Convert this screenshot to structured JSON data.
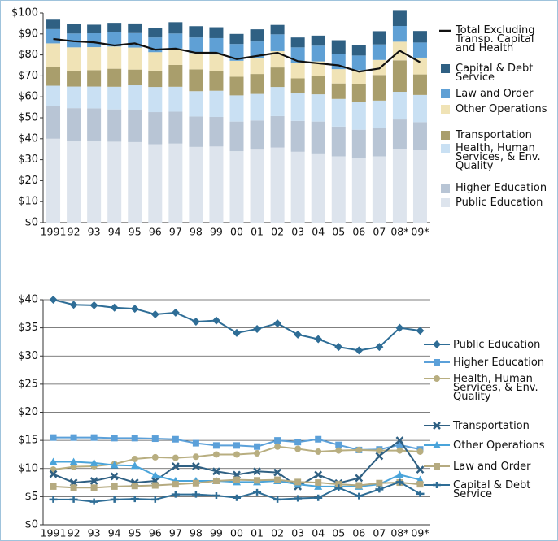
{
  "chart_data": [
    {
      "type": "bar",
      "stacked": true,
      "categories": [
        "1991",
        "92",
        "93",
        "94",
        "95",
        "96",
        "97",
        "98",
        "99",
        "00",
        "01",
        "02",
        "03",
        "04",
        "05",
        "06",
        "07",
        "08*",
        "09*"
      ],
      "ylim": [
        0,
        100
      ],
      "yticks": [
        {
          "value": 0,
          "label": "$0"
        },
        {
          "value": 10,
          "label": "$10"
        },
        {
          "value": 20,
          "label": "$20"
        },
        {
          "value": 30,
          "label": "$30"
        },
        {
          "value": 40,
          "label": "$40"
        },
        {
          "value": 50,
          "label": "$50"
        },
        {
          "value": 60,
          "label": "$60"
        },
        {
          "value": 70,
          "label": "$70"
        },
        {
          "value": 80,
          "label": "$80"
        },
        {
          "value": 90,
          "label": "$90"
        },
        {
          "value": 100,
          "label": "$100"
        }
      ],
      "series": [
        {
          "name": "Public Education",
          "color": "#dde4ed",
          "values": [
            40.0,
            39.1,
            39.0,
            38.6,
            38.4,
            37.4,
            37.7,
            36.1,
            36.3,
            34.1,
            34.8,
            35.8,
            33.8,
            33.0,
            31.6,
            31.0,
            31.6,
            35.0,
            34.5
          ]
        },
        {
          "name": "Higher Education",
          "color": "#b8c5d5",
          "values": [
            15.5,
            15.5,
            15.5,
            15.4,
            15.4,
            15.3,
            15.2,
            14.5,
            14.1,
            14.1,
            13.9,
            15.0,
            14.7,
            15.2,
            14.2,
            13.3,
            13.4,
            14.2,
            13.4
          ]
        },
        {
          "name": "Health, Human Services, & Env. Quality",
          "color": "#c9e0f3",
          "values": [
            9.8,
            10.3,
            10.4,
            10.8,
            11.7,
            12.0,
            11.9,
            12.1,
            12.5,
            12.5,
            12.7,
            13.9,
            13.5,
            13.0,
            13.2,
            13.3,
            13.2,
            13.2,
            13.0
          ]
        },
        {
          "name": "Transportation",
          "color": "#a99e6c",
          "values": [
            9.0,
            7.5,
            7.8,
            8.6,
            7.5,
            7.8,
            10.4,
            10.4,
            9.5,
            8.9,
            9.5,
            9.3,
            6.8,
            8.9,
            7.4,
            8.3,
            12.2,
            15.0,
            9.8
          ]
        },
        {
          "name": "Other Operations",
          "color": "#f0e3b6",
          "values": [
            11.2,
            11.2,
            11.0,
            10.6,
            10.5,
            8.8,
            7.8,
            7.8,
            7.8,
            7.6,
            7.6,
            7.8,
            7.2,
            6.8,
            6.8,
            6.8,
            7.2,
            8.9,
            8.0
          ]
        },
        {
          "name": "Law and Order",
          "color": "#5fa0d5",
          "values": [
            6.8,
            6.6,
            6.6,
            6.8,
            6.9,
            7.0,
            7.2,
            7.4,
            7.8,
            8.0,
            7.9,
            8.0,
            7.6,
            7.5,
            7.2,
            7.0,
            7.4,
            7.5,
            7.2
          ]
        },
        {
          "name": "Capital & Debt Service",
          "color": "#2f6083",
          "values": [
            4.5,
            4.5,
            4.1,
            4.5,
            4.6,
            4.5,
            5.4,
            5.4,
            5.2,
            4.8,
            5.8,
            4.5,
            4.7,
            4.8,
            6.6,
            5.1,
            6.3,
            7.6,
            5.5
          ]
        },
        {
          "name": "Total Excluding Transp. Capital and Health",
          "type": "line",
          "color": "#111111",
          "values": [
            87.6,
            86.5,
            86.0,
            84.5,
            85.5,
            82.5,
            83.0,
            81.0,
            81.0,
            78.0,
            79.5,
            81.0,
            77.0,
            76.0,
            75.0,
            72.0,
            73.5,
            82.0,
            76.5
          ]
        }
      ]
    },
    {
      "type": "line",
      "categories": [
        "1991",
        "92",
        "93",
        "94",
        "95",
        "96",
        "97",
        "98",
        "99",
        "00",
        "01",
        "02",
        "03",
        "04",
        "05",
        "06",
        "07",
        "08*",
        "09*"
      ],
      "ylim": [
        0,
        40
      ],
      "yticks": [
        {
          "value": 0,
          "label": "$0"
        },
        {
          "value": 5,
          "label": "$5"
        },
        {
          "value": 10,
          "label": "$10"
        },
        {
          "value": 15,
          "label": "$15"
        },
        {
          "value": 20,
          "label": "$20"
        },
        {
          "value": 25,
          "label": "$25"
        },
        {
          "value": 30,
          "label": "$30"
        },
        {
          "value": 35,
          "label": "$35"
        },
        {
          "value": 40,
          "label": "$40"
        }
      ],
      "series": [
        {
          "name": "Public Education",
          "color": "#2e6d96",
          "marker": "diamond",
          "values": [
            40.0,
            39.1,
            39.0,
            38.6,
            38.4,
            37.4,
            37.7,
            36.1,
            36.3,
            34.1,
            34.8,
            35.8,
            33.8,
            33.0,
            31.6,
            31.0,
            31.6,
            35.0,
            34.5
          ]
        },
        {
          "name": "Higher Education",
          "color": "#5ba0d9",
          "marker": "square",
          "values": [
            15.5,
            15.5,
            15.5,
            15.4,
            15.4,
            15.3,
            15.2,
            14.5,
            14.1,
            14.1,
            13.9,
            15.0,
            14.7,
            15.2,
            14.2,
            13.3,
            13.4,
            14.2,
            13.4
          ]
        },
        {
          "name": "Health, Human Services, & Env. Quality",
          "color": "#b8ae80",
          "marker": "circle",
          "values": [
            9.8,
            10.3,
            10.4,
            10.8,
            11.7,
            12.0,
            11.9,
            12.1,
            12.5,
            12.5,
            12.7,
            13.9,
            13.5,
            13.0,
            13.2,
            13.3,
            13.2,
            13.2,
            13.0
          ]
        },
        {
          "name": "Transportation",
          "color": "#2f6083",
          "marker": "x",
          "values": [
            9.0,
            7.5,
            7.8,
            8.6,
            7.5,
            7.8,
            10.4,
            10.4,
            9.5,
            8.9,
            9.5,
            9.3,
            6.8,
            8.9,
            7.4,
            8.3,
            12.2,
            15.0,
            9.8
          ]
        },
        {
          "name": "Other Operations",
          "color": "#4aa4da",
          "marker": "triangle",
          "values": [
            11.2,
            11.2,
            11.0,
            10.6,
            10.5,
            8.8,
            7.8,
            7.8,
            7.8,
            7.6,
            7.6,
            7.8,
            7.2,
            6.8,
            6.8,
            6.8,
            7.2,
            8.9,
            8.0
          ]
        },
        {
          "name": "Law and Order",
          "color": "#b5aa80",
          "marker": "square",
          "values": [
            6.8,
            6.6,
            6.6,
            6.8,
            6.9,
            7.0,
            7.2,
            7.4,
            7.8,
            8.0,
            7.9,
            8.0,
            7.6,
            7.5,
            7.2,
            7.0,
            7.4,
            7.5,
            7.2
          ]
        },
        {
          "name": "Capital & Debt Service",
          "color": "#2e6d96",
          "marker": "plus",
          "values": [
            4.5,
            4.5,
            4.1,
            4.5,
            4.6,
            4.5,
            5.4,
            5.4,
            5.2,
            4.8,
            5.8,
            4.5,
            4.7,
            4.8,
            6.6,
            5.1,
            6.3,
            7.6,
            5.5
          ]
        }
      ]
    }
  ]
}
